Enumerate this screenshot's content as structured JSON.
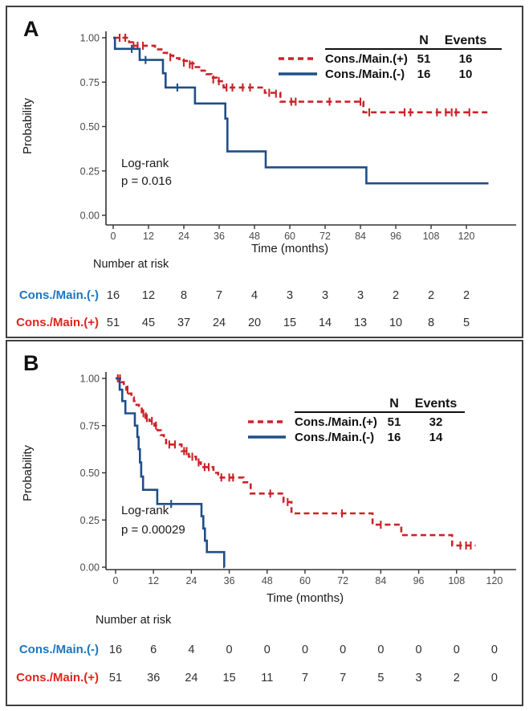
{
  "chart_data": [
    {
      "type": "line",
      "subtype": "kaplan-meier",
      "letter": "A",
      "xlabel": "Time (months)",
      "ylabel": "Probability",
      "xlim": [
        0,
        130
      ],
      "ylim": [
        0,
        1
      ],
      "xticks": [
        0,
        12,
        24,
        36,
        48,
        60,
        72,
        84,
        96,
        108,
        120
      ],
      "yticks": [
        "1.00",
        "0.75",
        "0.50",
        "0.25",
        "0.00"
      ],
      "grid": "off",
      "legend_position": "top-right",
      "logrank": {
        "label": "Log-rank",
        "p": "p = 0.016"
      },
      "legend": {
        "n_header": "N",
        "events_header": "Events",
        "rows": [
          {
            "label": "Cons./Main.(+)",
            "n": "51",
            "events": "16",
            "style": "dashed",
            "color": "#cb2329"
          },
          {
            "label": "Cons./Main.(-)",
            "n": "16",
            "events": "10",
            "style": "solid",
            "color": "#1f4e8a"
          }
        ]
      },
      "series": [
        {
          "name": "Cons./Main.(+)",
          "color": "#cb2329",
          "style": "dashed",
          "t_end": 127.5,
          "steps": [
            [
              0,
              1.0
            ],
            [
              5.4,
              0.975
            ],
            [
              6.6,
              0.955
            ],
            [
              14.2,
              0.935
            ],
            [
              16.4,
              0.915
            ],
            [
              18.3,
              0.9
            ],
            [
              20.4,
              0.885
            ],
            [
              22.5,
              0.87
            ],
            [
              25,
              0.855
            ],
            [
              28,
              0.835
            ],
            [
              30,
              0.815
            ],
            [
              31.7,
              0.795
            ],
            [
              33.4,
              0.775
            ],
            [
              35.2,
              0.755
            ],
            [
              37.5,
              0.72
            ],
            [
              51.5,
              0.69
            ],
            [
              56.8,
              0.64
            ],
            [
              85,
              0.58
            ]
          ],
          "censors": [
            [
              2.2,
              1.0
            ],
            [
              4.1,
              1.0
            ],
            [
              6.9,
              0.955
            ],
            [
              8.3,
              0.955
            ],
            [
              10.1,
              0.955
            ],
            [
              19.4,
              0.89
            ],
            [
              24,
              0.86
            ],
            [
              26,
              0.85
            ],
            [
              26.9,
              0.845
            ],
            [
              34,
              0.765
            ],
            [
              35.9,
              0.755
            ],
            [
              38.5,
              0.72
            ],
            [
              40.5,
              0.72
            ],
            [
              44,
              0.72
            ],
            [
              46.5,
              0.72
            ],
            [
              53,
              0.69
            ],
            [
              55.3,
              0.685
            ],
            [
              60.5,
              0.64
            ],
            [
              62,
              0.64
            ],
            [
              73.5,
              0.64
            ],
            [
              84,
              0.64
            ],
            [
              87,
              0.58
            ],
            [
              99,
              0.58
            ],
            [
              101,
              0.58
            ],
            [
              110,
              0.58
            ],
            [
              113,
              0.58
            ],
            [
              115,
              0.58
            ],
            [
              116.5,
              0.58
            ],
            [
              121,
              0.58
            ]
          ]
        },
        {
          "name": "Cons./Main.(-)",
          "color": "#1f4e8a",
          "style": "solid",
          "t_end": 127.5,
          "steps": [
            [
              0,
              1.0
            ],
            [
              0.6,
              0.9375
            ],
            [
              9,
              0.875
            ],
            [
              16.9,
              0.8
            ],
            [
              17.8,
              0.72
            ],
            [
              27.8,
              0.63
            ],
            [
              38.1,
              0.545
            ],
            [
              38.8,
              0.36
            ],
            [
              51.8,
              0.27
            ],
            [
              86,
              0.18
            ]
          ],
          "censors": [
            [
              6.3,
              0.9375
            ],
            [
              11,
              0.875
            ],
            [
              21.8,
              0.72
            ]
          ]
        }
      ],
      "risk_table": {
        "title": "Number at risk",
        "time_points": [
          0,
          12,
          24,
          36,
          48,
          60,
          72,
          84,
          96,
          108,
          120
        ],
        "rows": [
          {
            "label": "Cons./Main.(-)",
            "color": "#1b75c0",
            "values": [
              "16",
              "12",
              "8",
              "7",
              "4",
              "3",
              "3",
              "3",
              "2",
              "2",
              "2"
            ]
          },
          {
            "label": "Cons./Main.(+)",
            "color": "#e2231f",
            "values": [
              "51",
              "45",
              "37",
              "24",
              "20",
              "15",
              "14",
              "13",
              "10",
              "8",
              "5"
            ]
          }
        ]
      }
    },
    {
      "type": "line",
      "subtype": "kaplan-meier",
      "letter": "B",
      "xlabel": "Time (months)",
      "ylabel": "Probability",
      "xlim": [
        0,
        126
      ],
      "ylim": [
        0,
        1
      ],
      "xticks": [
        0,
        12,
        24,
        36,
        48,
        60,
        72,
        84,
        96,
        108,
        120
      ],
      "yticks": [
        "1.00",
        "0.75",
        "0.50",
        "0.25",
        "0.00"
      ],
      "grid": "off",
      "legend_position": "top-right",
      "logrank": {
        "label": "Log-rank",
        "p": "p = 0.00029"
      },
      "legend": {
        "n_header": "N",
        "events_header": "Events",
        "rows": [
          {
            "label": "Cons./Main.(+)",
            "n": "51",
            "events": "32",
            "style": "dashed",
            "color": "#cb2329"
          },
          {
            "label": "Cons./Main.(-)",
            "n": "16",
            "events": "14",
            "style": "solid",
            "color": "#1f4e8a"
          }
        ]
      },
      "series": [
        {
          "name": "Cons./Main.(+)",
          "color": "#cb2329",
          "style": "dashed",
          "t_end": 114,
          "steps": [
            [
              0,
              1.0
            ],
            [
              1.8,
              0.98
            ],
            [
              2.6,
              0.96
            ],
            [
              3.4,
              0.94
            ],
            [
              4.2,
              0.92
            ],
            [
              5,
              0.9
            ],
            [
              5.8,
              0.88
            ],
            [
              6.6,
              0.86
            ],
            [
              7.4,
              0.84
            ],
            [
              8.3,
              0.815
            ],
            [
              9.5,
              0.79
            ],
            [
              10.7,
              0.775
            ],
            [
              12.3,
              0.75
            ],
            [
              13.3,
              0.725
            ],
            [
              14.3,
              0.7
            ],
            [
              15.3,
              0.675
            ],
            [
              16,
              0.65
            ],
            [
              20.9,
              0.615
            ],
            [
              23.2,
              0.585
            ],
            [
              25.5,
              0.555
            ],
            [
              27,
              0.53
            ],
            [
              31,
              0.5
            ],
            [
              32.5,
              0.475
            ],
            [
              40.5,
              0.45
            ],
            [
              42.8,
              0.39
            ],
            [
              53.2,
              0.345
            ],
            [
              55.7,
              0.285
            ],
            [
              81.4,
              0.225
            ],
            [
              90.5,
              0.17
            ],
            [
              106.6,
              0.115
            ]
          ],
          "censors": [
            [
              0.7,
              1.0
            ],
            [
              1.4,
              1.0
            ],
            [
              3.8,
              0.94
            ],
            [
              8.8,
              0.815
            ],
            [
              9.9,
              0.79
            ],
            [
              11.5,
              0.775
            ],
            [
              12.8,
              0.75
            ],
            [
              17,
              0.65
            ],
            [
              18.8,
              0.65
            ],
            [
              21.7,
              0.615
            ],
            [
              22.5,
              0.615
            ],
            [
              24.3,
              0.585
            ],
            [
              26.3,
              0.555
            ],
            [
              28.2,
              0.53
            ],
            [
              29.5,
              0.53
            ],
            [
              33.5,
              0.475
            ],
            [
              36,
              0.475
            ],
            [
              37.2,
              0.475
            ],
            [
              49,
              0.39
            ],
            [
              54.5,
              0.345
            ],
            [
              71.7,
              0.285
            ],
            [
              84,
              0.225
            ],
            [
              109.2,
              0.115
            ],
            [
              111,
              0.115
            ],
            [
              112.5,
              0.115
            ]
          ]
        },
        {
          "name": "Cons./Main.(-)",
          "color": "#1f4e8a",
          "style": "solid",
          "t_end": 34.5,
          "steps": [
            [
              0,
              1.0
            ],
            [
              1.3,
              0.94
            ],
            [
              2.1,
              0.88
            ],
            [
              3.1,
              0.815
            ],
            [
              6.1,
              0.75
            ],
            [
              6.9,
              0.69
            ],
            [
              7.3,
              0.625
            ],
            [
              7.7,
              0.555
            ],
            [
              8.1,
              0.48
            ],
            [
              8.7,
              0.41
            ],
            [
              13.2,
              0.335
            ],
            [
              27.2,
              0.27
            ],
            [
              27.8,
              0.205
            ],
            [
              28.3,
              0.14
            ],
            [
              28.9,
              0.08
            ],
            [
              34.4,
              0.0
            ]
          ],
          "censors": [
            [
              17.6,
              0.335
            ]
          ]
        }
      ],
      "risk_table": {
        "title": "Number at risk",
        "time_points": [
          0,
          12,
          24,
          36,
          48,
          60,
          72,
          84,
          96,
          108,
          120
        ],
        "rows": [
          {
            "label": "Cons./Main.(-)",
            "color": "#1b75c0",
            "values": [
              "16",
              "6",
              "4",
              "0",
              "0",
              "0",
              "0",
              "0",
              "0",
              "0",
              "0"
            ]
          },
          {
            "label": "Cons./Main.(+)",
            "color": "#e2231f",
            "values": [
              "51",
              "36",
              "24",
              "15",
              "11",
              "7",
              "7",
              "5",
              "3",
              "2",
              "0"
            ]
          }
        ]
      }
    }
  ]
}
